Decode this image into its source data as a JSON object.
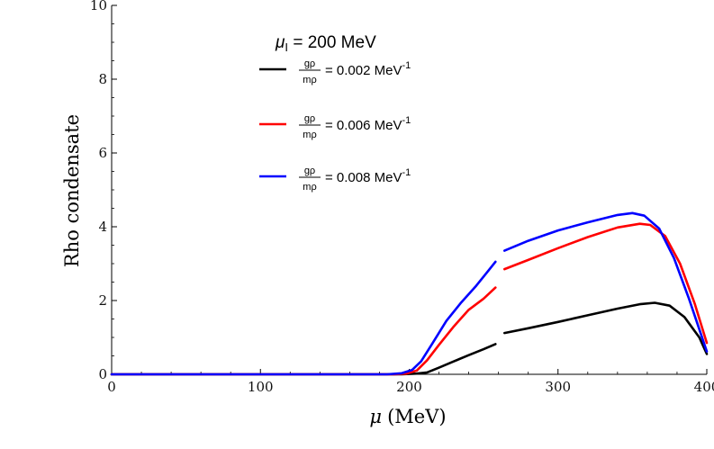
{
  "chart_data": {
    "type": "line",
    "xlabel_symbol": "μ",
    "xlabel_unit": "(MeV)",
    "ylabel": "Rho condensate",
    "xlim": [
      0,
      400
    ],
    "ylim": [
      0,
      10
    ],
    "xticks": [
      0,
      100,
      200,
      300,
      400
    ],
    "yticks": [
      0,
      2,
      4,
      6,
      8,
      10
    ],
    "legend_title": {
      "symbol": "μ",
      "subscript": "I",
      "rest": " = 200 MeV"
    },
    "legend_position": "top-center",
    "frac_num": "gρ",
    "frac_den": "mρ",
    "legend_unit": "MeV",
    "legend_exp": "-1",
    "series": [
      {
        "name": "g_rho/m_rho = 0.002 MeV^-1",
        "legend_value": "= 0.002",
        "color": "#000000",
        "segments": [
          [
            [
              0,
              0
            ],
            [
              195,
              0
            ],
            [
              205,
              0.02
            ],
            [
              212,
              0.05
            ],
            [
              220,
              0.18
            ],
            [
              230,
              0.35
            ],
            [
              240,
              0.52
            ],
            [
              250,
              0.68
            ],
            [
              258,
              0.82
            ]
          ],
          [
            [
              264,
              1.12
            ],
            [
              280,
              1.25
            ],
            [
              300,
              1.42
            ],
            [
              320,
              1.6
            ],
            [
              340,
              1.78
            ],
            [
              355,
              1.9
            ],
            [
              365,
              1.94
            ],
            [
              375,
              1.86
            ],
            [
              385,
              1.55
            ],
            [
              395,
              1.0
            ],
            [
              400,
              0.55
            ]
          ]
        ]
      },
      {
        "name": "g_rho/m_rho = 0.006 MeV^-1",
        "legend_value": "= 0.006",
        "color": "#ff0000",
        "segments": [
          [
            [
              0,
              0
            ],
            [
              190,
              0
            ],
            [
              198,
              0.02
            ],
            [
              205,
              0.1
            ],
            [
              212,
              0.38
            ],
            [
              220,
              0.8
            ],
            [
              230,
              1.3
            ],
            [
              240,
              1.75
            ],
            [
              250,
              2.05
            ],
            [
              258,
              2.35
            ]
          ],
          [
            [
              264,
              2.85
            ],
            [
              280,
              3.1
            ],
            [
              300,
              3.42
            ],
            [
              320,
              3.72
            ],
            [
              340,
              3.98
            ],
            [
              355,
              4.08
            ],
            [
              362,
              4.05
            ],
            [
              372,
              3.75
            ],
            [
              382,
              3.0
            ],
            [
              392,
              1.9
            ],
            [
              400,
              0.85
            ]
          ]
        ]
      },
      {
        "name": "g_rho/m_rho = 0.008 MeV^-1",
        "legend_value": "= 0.008",
        "color": "#0000ff",
        "segments": [
          [
            [
              0,
              0
            ],
            [
              185,
              0
            ],
            [
              195,
              0.03
            ],
            [
              202,
              0.12
            ],
            [
              208,
              0.35
            ],
            [
              215,
              0.8
            ],
            [
              225,
              1.45
            ],
            [
              235,
              1.95
            ],
            [
              245,
              2.4
            ],
            [
              252,
              2.75
            ],
            [
              258,
              3.05
            ]
          ],
          [
            [
              264,
              3.35
            ],
            [
              280,
              3.62
            ],
            [
              300,
              3.9
            ],
            [
              320,
              4.12
            ],
            [
              340,
              4.32
            ],
            [
              350,
              4.37
            ],
            [
              358,
              4.3
            ],
            [
              368,
              3.95
            ],
            [
              378,
              3.15
            ],
            [
              388,
              2.05
            ],
            [
              400,
              0.62
            ]
          ]
        ]
      }
    ]
  }
}
